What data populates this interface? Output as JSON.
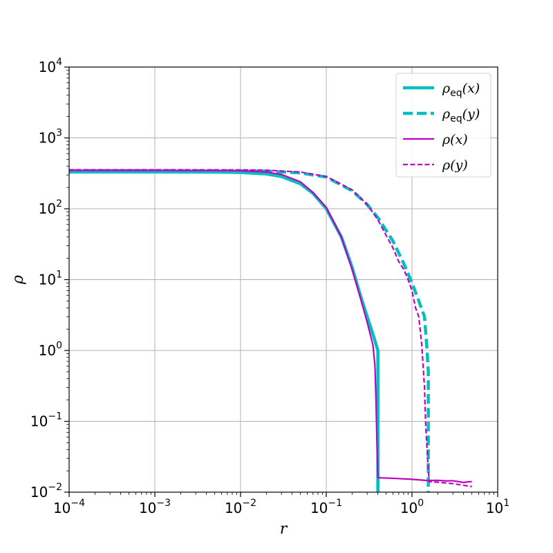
{
  "chart_data": {
    "type": "line",
    "title": "",
    "xlabel": "r",
    "ylabel": "ρ",
    "xscale": "log",
    "yscale": "log",
    "xlim": [
      0.0001,
      10
    ],
    "ylim": [
      0.01,
      10000
    ],
    "grid": true,
    "legend_position": "top-right",
    "x_ticks": [
      {
        "value": 0.0001,
        "base": "10",
        "exp": "−4"
      },
      {
        "value": 0.001,
        "base": "10",
        "exp": "−3"
      },
      {
        "value": 0.01,
        "base": "10",
        "exp": "−2"
      },
      {
        "value": 0.1,
        "base": "10",
        "exp": "−1"
      },
      {
        "value": 1,
        "base": "10",
        "exp": "0"
      },
      {
        "value": 10,
        "base": "10",
        "exp": "1"
      }
    ],
    "y_ticks": [
      {
        "value": 0.01,
        "base": "10",
        "exp": "−2"
      },
      {
        "value": 0.1,
        "base": "10",
        "exp": "−1"
      },
      {
        "value": 1,
        "base": "10",
        "exp": "0"
      },
      {
        "value": 10,
        "base": "10",
        "exp": "1"
      },
      {
        "value": 100,
        "base": "10",
        "exp": "2"
      },
      {
        "value": 1000,
        "base": "10",
        "exp": "3"
      },
      {
        "value": 10000,
        "base": "10",
        "exp": "4"
      }
    ],
    "series": [
      {
        "name": "ρeq(x)",
        "legend": {
          "symbol": "ρ",
          "sub": "eq",
          "arg": "(x)"
        },
        "color": "#00bfbf",
        "style": "solid",
        "weight": "thick",
        "x": [
          0.0001,
          0.001,
          0.005,
          0.01,
          0.02,
          0.03,
          0.05,
          0.07,
          0.1,
          0.15,
          0.2,
          0.25,
          0.3,
          0.35,
          0.4,
          0.4,
          0.4
        ],
        "y": [
          330,
          330,
          329,
          325,
          310,
          285,
          225,
          165,
          100,
          40,
          15,
          6,
          3,
          1.7,
          1.0,
          0.5,
          0.01
        ]
      },
      {
        "name": "ρeq(y)",
        "legend": {
          "symbol": "ρ",
          "sub": "eq",
          "arg": "(y)"
        },
        "color": "#00bfbf",
        "style": "dashed",
        "weight": "thick",
        "x": [
          0.0001,
          0.001,
          0.01,
          0.02,
          0.05,
          0.1,
          0.2,
          0.3,
          0.4,
          0.6,
          0.8,
          1.0,
          1.2,
          1.4,
          1.5,
          1.55,
          1.55,
          1.55
        ],
        "y": [
          345,
          345,
          343,
          340,
          320,
          280,
          180,
          115,
          75,
          35,
          17,
          9,
          5,
          3,
          1.0,
          0.5,
          0.05,
          0.01
        ]
      },
      {
        "name": "ρ(x)",
        "legend": {
          "symbol": "ρ",
          "sub": "",
          "arg": "(x)"
        },
        "color": "#bf00bf",
        "style": "solid",
        "weight": "thin",
        "x": [
          0.0001,
          0.001,
          0.005,
          0.01,
          0.02,
          0.03,
          0.05,
          0.07,
          0.1,
          0.15,
          0.2,
          0.25,
          0.3,
          0.35,
          0.37,
          0.38,
          0.39,
          0.4,
          0.6,
          1.0,
          1.5,
          2.0,
          2.5,
          3.0,
          4.0,
          4.5,
          5.0
        ],
        "y": [
          348,
          348,
          347,
          344,
          330,
          305,
          240,
          170,
          105,
          40,
          14,
          5.5,
          2.5,
          1.2,
          0.6,
          0.2,
          0.05,
          0.016,
          0.0157,
          0.0152,
          0.0146,
          0.0147,
          0.0144,
          0.0145,
          0.0137,
          0.014,
          0.0141
        ]
      },
      {
        "name": "ρ(y)",
        "legend": {
          "symbol": "ρ",
          "sub": "",
          "arg": "(y)"
        },
        "color": "#bf00bf",
        "style": "dashed",
        "weight": "thin",
        "x": [
          0.0001,
          0.001,
          0.01,
          0.02,
          0.05,
          0.1,
          0.2,
          0.3,
          0.4,
          0.5,
          0.6,
          0.7,
          0.8,
          0.9,
          1.0,
          1.1,
          1.2,
          1.3,
          1.4,
          1.45,
          1.5,
          1.55,
          1.6,
          2.0,
          3.0,
          4.0,
          5.0
        ],
        "y": [
          355,
          355,
          354,
          350,
          330,
          285,
          185,
          115,
          70,
          42,
          28,
          18,
          14,
          10,
          7,
          4,
          3,
          1.2,
          0.3,
          0.08,
          0.04,
          0.02,
          0.014,
          0.0138,
          0.0132,
          0.0125,
          0.012
        ]
      }
    ]
  }
}
